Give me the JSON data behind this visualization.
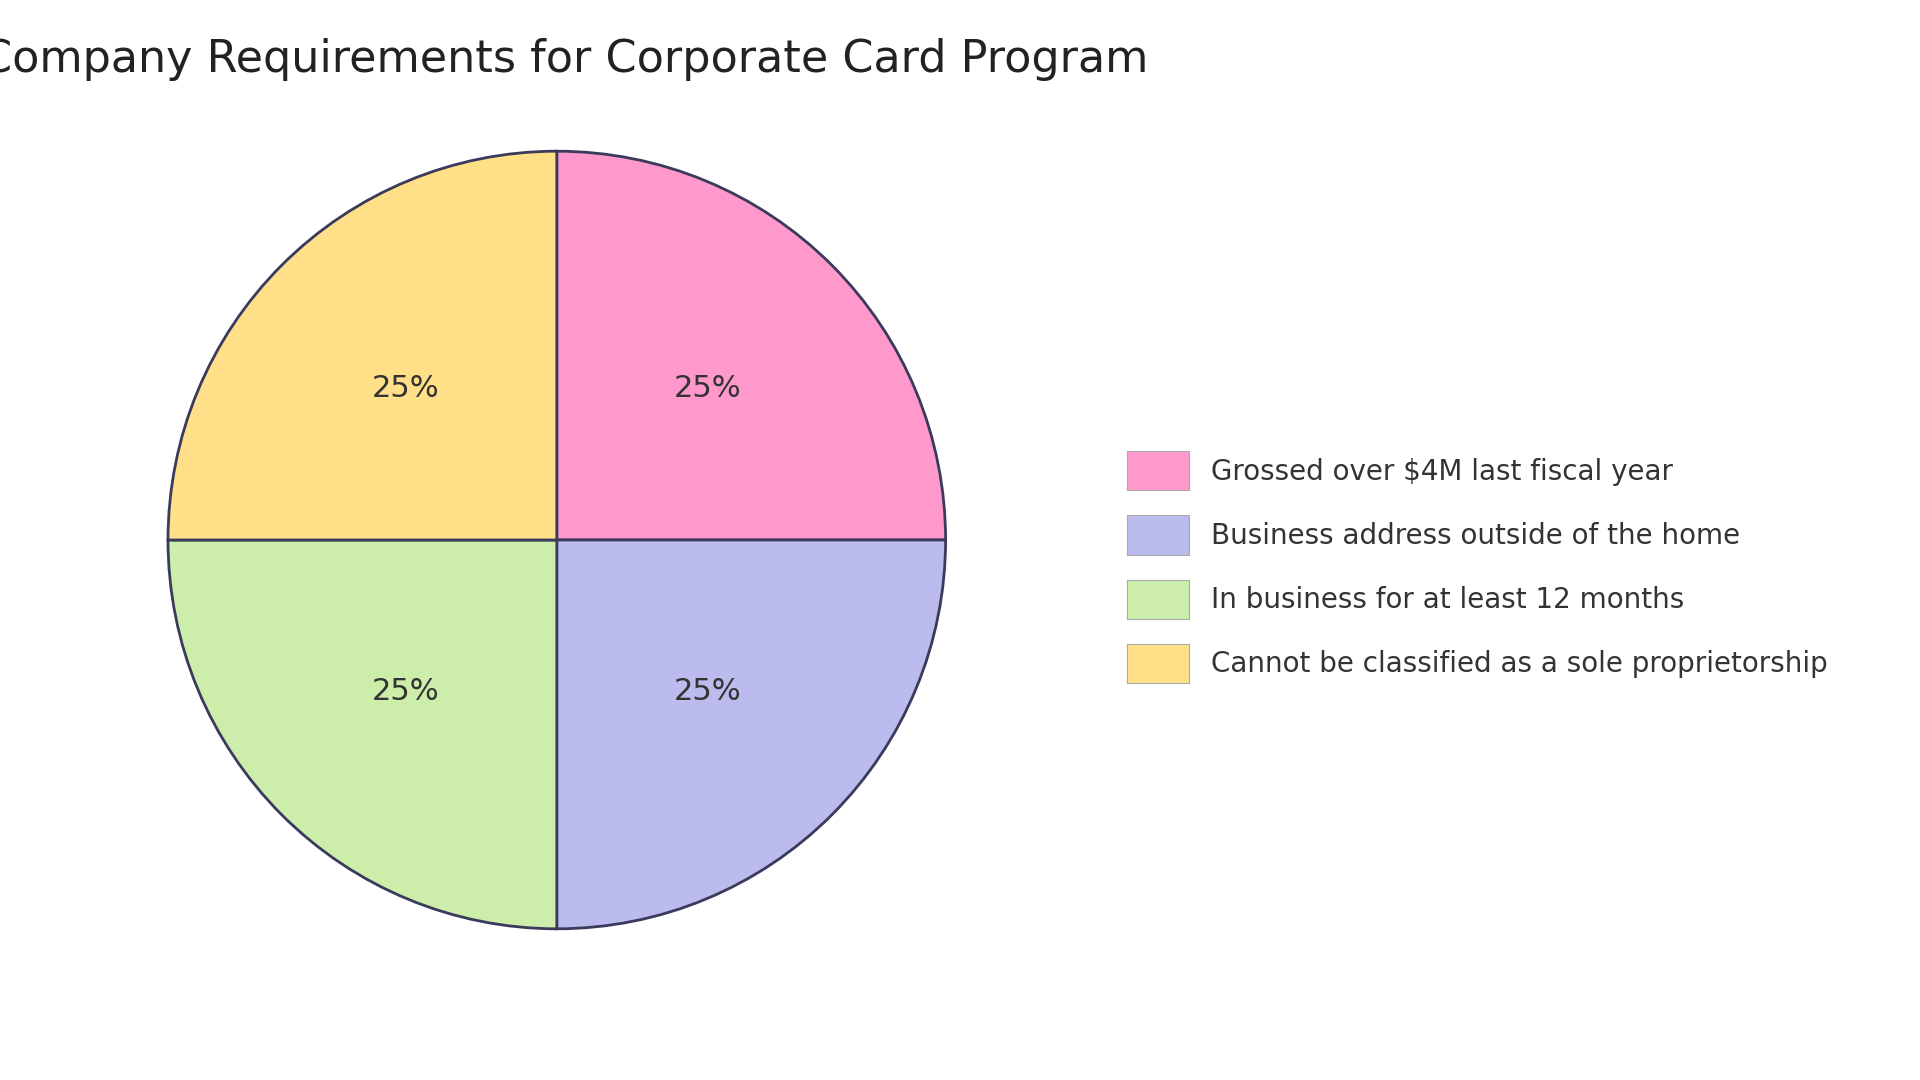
{
  "title": "Company Requirements for Corporate Card Program",
  "slices": [
    25,
    25,
    25,
    25
  ],
  "labels": [
    "25%",
    "25%",
    "25%",
    "25%"
  ],
  "colors": [
    "#FF99CC",
    "#BBBBEE",
    "#CCEEAA",
    "#FFE088"
  ],
  "slice_order": [
    "pink",
    "blue",
    "green",
    "yellow"
  ],
  "legend_labels": [
    "Grossed over $4M last fiscal year",
    "Business address outside of the home",
    "In business for at least 12 months",
    "Cannot be classified as a sole proprietorship"
  ],
  "edge_color": "#3a3a5c",
  "edge_width": 2.0,
  "title_fontsize": 32,
  "label_fontsize": 22,
  "legend_fontsize": 20,
  "background_color": "#FFFFFF",
  "start_angle": 90
}
